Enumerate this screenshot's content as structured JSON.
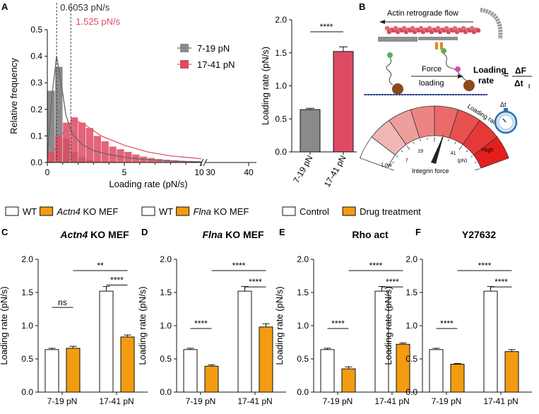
{
  "colors": {
    "gray": "#8a8a8a",
    "pink": "#de4a62",
    "orange": "#f39c12",
    "white": "#ffffff",
    "black": "#111111",
    "curve_gray": "#666666",
    "curve_pink": "#e0586e"
  },
  "panels": {
    "A": "A",
    "B": "B",
    "C": "C",
    "D": "D",
    "E": "E",
    "F": "F"
  },
  "schematic": {
    "flow_label": "Actin retrograde flow",
    "force_label": "Force",
    "loading_label": "loading",
    "rate_label_1": "Loading",
    "rate_label_2": "rate",
    "equals": "=",
    "numerator": "ΔF",
    "denominator": "Δt",
    "denominator_sub": "l",
    "gauge_low": "Low",
    "gauge_high": "High",
    "gauge_title": "Loading rate",
    "gauge_xlabel": "Integrin force",
    "gauge_ticks": [
      "7",
      "19",
      "41",
      "(pN)"
    ],
    "timer_label": "Δt"
  },
  "legends": {
    "c": [
      {
        "prefix": "WT",
        "italic": "",
        "suffix": ""
      },
      {
        "prefix": "",
        "italic": "Actn4",
        "suffix": " KO MEF"
      }
    ],
    "d": [
      {
        "prefix": "WT",
        "italic": "",
        "suffix": ""
      },
      {
        "prefix": "",
        "italic": "Flna",
        "suffix": " KO MEF"
      }
    ],
    "ef": [
      {
        "prefix": "Control",
        "italic": "",
        "suffix": ""
      },
      {
        "prefix": "Drug treatment",
        "italic": "",
        "suffix": ""
      }
    ]
  },
  "chart_data": [
    {
      "id": "A_hist",
      "type": "bar",
      "xlabel": "Loading rate (pN/s)",
      "ylabel": "Relative frequency",
      "ylim": [
        0,
        0.5
      ],
      "yticks": [
        "0.0",
        "0.1",
        "0.2",
        "0.3",
        "0.4",
        "0.5"
      ],
      "xticks_left": [
        "0",
        "5",
        "10"
      ],
      "xticks_right": [
        "30",
        "40"
      ],
      "xlim_left": [
        0,
        10
      ],
      "xlim_right": [
        30,
        40
      ],
      "bin_width": 0.5,
      "vlines": [
        {
          "x": 0.6053,
          "label": "0.6053 pN/s"
        },
        {
          "x": 1.525,
          "label": "1.525 pN/s"
        }
      ],
      "series": [
        {
          "name": "7-19 pN",
          "values": [
            0.27,
            0.36,
            0.09,
            0.04,
            0.02,
            0.01,
            0.005,
            0.003,
            0.002,
            0.001,
            0,
            0,
            0,
            0,
            0,
            0,
            0,
            0,
            0,
            0
          ]
        },
        {
          "name": "17-41 pN",
          "values": [
            0.04,
            0.1,
            0.15,
            0.17,
            0.15,
            0.13,
            0.1,
            0.08,
            0.06,
            0.05,
            0.04,
            0.03,
            0.022,
            0.017,
            0.013,
            0.01,
            0.008,
            0.006,
            0.005,
            0.004
          ]
        }
      ],
      "fit_7_19": [
        [
          0,
          0.02
        ],
        [
          0.3,
          0.25
        ],
        [
          0.6,
          0.4
        ],
        [
          0.9,
          0.3
        ],
        [
          1.2,
          0.18
        ],
        [
          1.6,
          0.11
        ],
        [
          2.2,
          0.07
        ],
        [
          3,
          0.045
        ],
        [
          4,
          0.03
        ],
        [
          5,
          0.02
        ],
        [
          6,
          0.013
        ],
        [
          7,
          0.009
        ],
        [
          8,
          0.006
        ],
        [
          9,
          0.004
        ],
        [
          10,
          0.003
        ]
      ],
      "fit_17_41": [
        [
          0,
          0.0
        ],
        [
          0.5,
          0.05
        ],
        [
          1,
          0.11
        ],
        [
          1.5,
          0.15
        ],
        [
          1.8,
          0.16
        ],
        [
          2.5,
          0.14
        ],
        [
          3.5,
          0.1
        ],
        [
          5,
          0.065
        ],
        [
          6.5,
          0.04
        ],
        [
          8,
          0.025
        ],
        [
          10,
          0.014
        ]
      ]
    },
    {
      "id": "A_bar",
      "type": "bar",
      "ylabel": "Loading rate (pN/s)",
      "ylim": [
        0,
        2.0
      ],
      "yticks": [
        "0.0",
        "0.5",
        "1.0",
        "1.5",
        "2.0"
      ],
      "categories": [
        "7-19 pN",
        "17-41 pN"
      ],
      "values": [
        0.64,
        1.52
      ],
      "errors": [
        0.02,
        0.07
      ],
      "significance": "****"
    },
    {
      "id": "C",
      "type": "bar",
      "title": "KO MEF",
      "title_italic": "Actn4",
      "ylabel": "Loading rate (pN/s)",
      "ylim": [
        0,
        2.0
      ],
      "yticks": [
        "0.0",
        "0.5",
        "1.0",
        "1.5",
        "2.0"
      ],
      "categories": [
        "7-19 pN",
        "17-41 pN"
      ],
      "series": [
        {
          "name": "WT",
          "values": [
            0.64,
            1.52
          ],
          "errors": [
            0.02,
            0.07
          ]
        },
        {
          "name": "Actn4 KO MEF",
          "values": [
            0.66,
            0.83
          ],
          "errors": [
            0.03,
            0.03
          ]
        }
      ],
      "significance": {
        "low_pair": "ns",
        "high_pair": "****",
        "cross": "**"
      }
    },
    {
      "id": "D",
      "type": "bar",
      "title": "KO MEF",
      "title_italic": "Flna",
      "ylabel": "Loading rate (pN/s)",
      "ylim": [
        0,
        2.0
      ],
      "yticks": [
        "0.0",
        "0.5",
        "1.0",
        "1.5",
        "2.0"
      ],
      "categories": [
        "7-19 pN",
        "17-41 pN"
      ],
      "series": [
        {
          "name": "WT",
          "values": [
            0.64,
            1.52
          ],
          "errors": [
            0.02,
            0.07
          ]
        },
        {
          "name": "Flna KO MEF",
          "values": [
            0.39,
            0.98
          ],
          "errors": [
            0.02,
            0.05
          ]
        }
      ],
      "significance": {
        "low_pair": "****",
        "high_pair": "****",
        "cross": "****"
      }
    },
    {
      "id": "E",
      "type": "bar",
      "title": "Rho act",
      "title_italic": "",
      "ylabel": "Loading rate (pN/s)",
      "ylim": [
        0,
        2.0
      ],
      "yticks": [
        "0.0",
        "0.5",
        "1.0",
        "1.5",
        "2.0"
      ],
      "categories": [
        "7-19 pN",
        "17-41 pN"
      ],
      "series": [
        {
          "name": "Control",
          "values": [
            0.64,
            1.52
          ],
          "errors": [
            0.02,
            0.07
          ]
        },
        {
          "name": "Drug treatment",
          "values": [
            0.35,
            0.72
          ],
          "errors": [
            0.03,
            0.02
          ]
        }
      ],
      "significance": {
        "low_pair": "****",
        "high_pair": "****",
        "cross": "****"
      }
    },
    {
      "id": "F",
      "type": "bar",
      "title": "Y27632",
      "title_italic": "",
      "ylabel": "Loading rate (pN/s)",
      "ylim": [
        0,
        2.0
      ],
      "yticks": [
        "0.0",
        "0.5",
        "1.0",
        "1.5",
        "2.0"
      ],
      "categories": [
        "7-19 pN",
        "17-41 pN"
      ],
      "series": [
        {
          "name": "Control",
          "values": [
            0.64,
            1.52
          ],
          "errors": [
            0.02,
            0.07
          ]
        },
        {
          "name": "Drug treatment",
          "values": [
            0.42,
            0.61
          ],
          "errors": [
            0.01,
            0.03
          ]
        }
      ],
      "significance": {
        "low_pair": "****",
        "high_pair": "****",
        "cross": "****"
      }
    }
  ]
}
